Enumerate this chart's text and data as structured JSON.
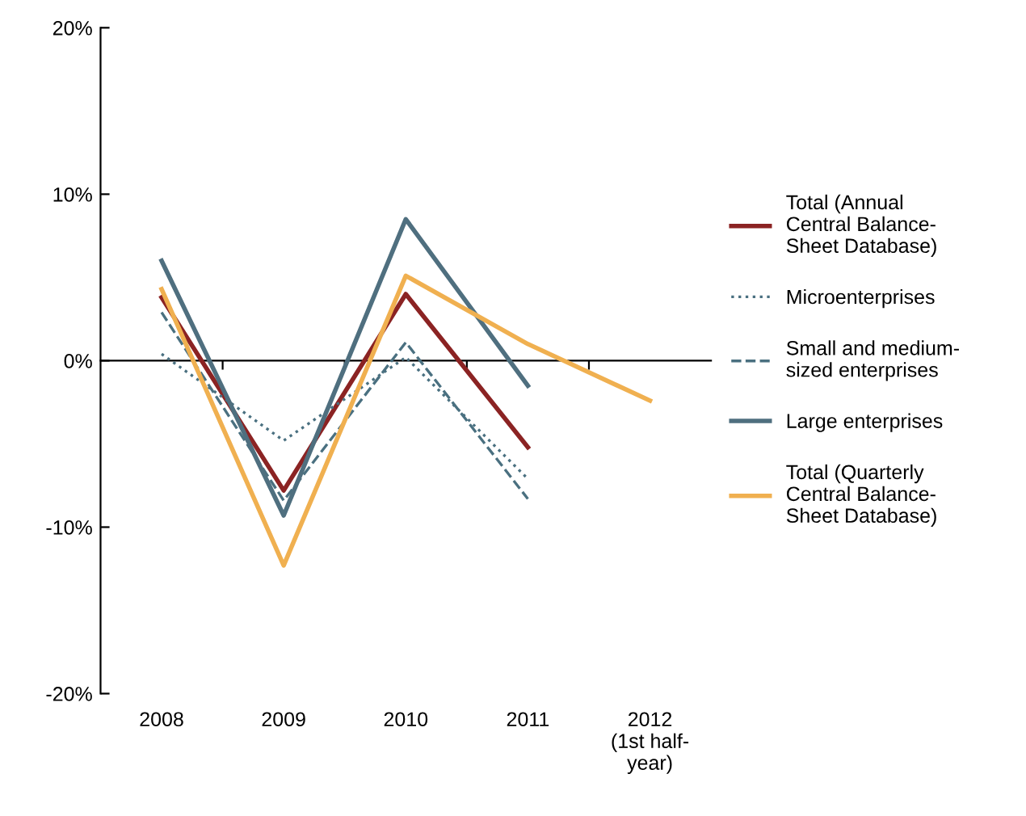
{
  "chart_data": {
    "type": "line",
    "categories": [
      "2008",
      "2009",
      "2010",
      "2011",
      "2012\n(1st half-\nyear)"
    ],
    "ylim": [
      -20,
      20
    ],
    "yticks": [
      {
        "value": -20,
        "label": "-20%"
      },
      {
        "value": -10,
        "label": "-10%"
      },
      {
        "value": 0,
        "label": "0%"
      },
      {
        "value": 10,
        "label": "10%"
      },
      {
        "value": 20,
        "label": "20%"
      }
    ],
    "legend": "right",
    "series": [
      {
        "name": "Total (Annual\nCentral Balance-\nSheet Database)",
        "color": "#8b2323",
        "line_style": "solid",
        "values": [
          3.8,
          -7.8,
          4.0,
          -5.2,
          null
        ]
      },
      {
        "name": "Microenterprises",
        "color": "#4a7080",
        "line_style": "dotted",
        "values": [
          0.4,
          -4.8,
          0.2,
          -7.1,
          null
        ]
      },
      {
        "name": "Small and medium-\nsized enterprises",
        "color": "#4a7080",
        "line_style": "dashed",
        "values": [
          2.9,
          -8.4,
          1.1,
          -8.3,
          null
        ]
      },
      {
        "name": "Large enterprises",
        "color": "#4f6f7f",
        "line_style": "solid",
        "values": [
          6.0,
          -9.3,
          8.5,
          -1.5,
          null
        ]
      },
      {
        "name": "Total (Quarterly\nCentral Balance-\nSheet Database)",
        "color": "#f0b050",
        "line_style": "solid",
        "values": [
          4.3,
          -12.3,
          5.1,
          1.0,
          -2.4
        ]
      }
    ]
  }
}
